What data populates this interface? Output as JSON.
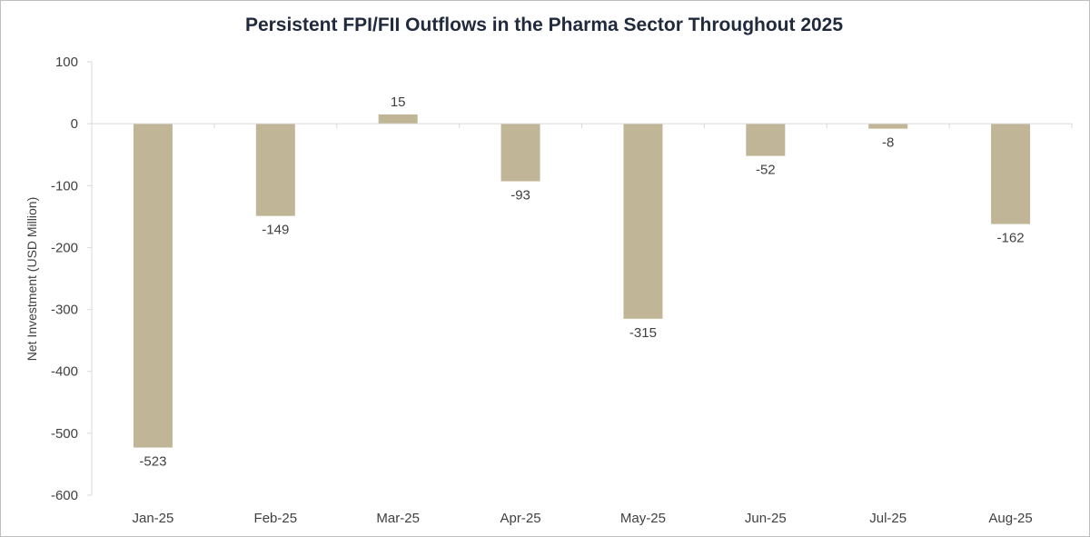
{
  "chart_data": {
    "type": "bar",
    "title": "Persistent FPI/FII Outflows in the Pharma Sector Throughout 2025",
    "ylabel": "Net Investment (USD Million)",
    "xlabel": "",
    "categories": [
      "Jan-25",
      "Feb-25",
      "Mar-25",
      "Apr-25",
      "May-25",
      "Jun-25",
      "Jul-25",
      "Aug-25"
    ],
    "values": [
      -523,
      -149,
      15,
      -93,
      -315,
      -52,
      -8,
      -162
    ],
    "data_labels": [
      "-523",
      "-149",
      "15",
      "-93",
      "-315",
      "-52",
      "-8",
      "-162"
    ],
    "ylim": [
      -600,
      100
    ],
    "yticks": [
      100,
      0,
      -100,
      -200,
      -300,
      -400,
      -500,
      -600
    ],
    "ytick_labels": [
      "100",
      "0",
      "-100",
      "-200",
      "-300",
      "-400",
      "-500",
      "-600"
    ],
    "bar_color": "#c0b596",
    "grid": false,
    "legend": "none"
  }
}
